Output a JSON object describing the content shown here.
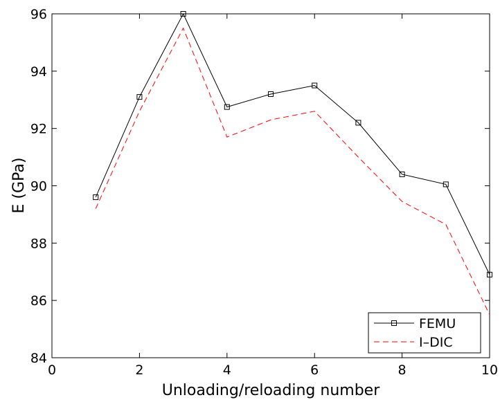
{
  "chart_data": {
    "type": "line",
    "xlabel": "Unloading/reloading number",
    "ylabel": "E (GPa)",
    "xlim": [
      0,
      10
    ],
    "ylim": [
      84,
      96
    ],
    "xticks": [
      0,
      2,
      4,
      6,
      8,
      10
    ],
    "yticks": [
      84,
      86,
      88,
      90,
      92,
      94,
      96
    ],
    "grid": false,
    "legend_position": "bottom-right",
    "series": [
      {
        "name": "FEMU",
        "color": "#000000",
        "style": "solid",
        "marker": "square",
        "x": [
          1,
          2,
          3,
          4,
          5,
          6,
          7,
          8,
          9,
          10
        ],
        "y": [
          89.6,
          93.1,
          96.0,
          92.75,
          93.2,
          93.5,
          92.2,
          90.4,
          90.05,
          86.9
        ]
      },
      {
        "name": "I–DIC",
        "color": "#ff0000",
        "style": "dashed",
        "marker": "none",
        "x": [
          1,
          2,
          3,
          4,
          5,
          6,
          7,
          8,
          9,
          10
        ],
        "y": [
          89.2,
          92.6,
          95.5,
          91.7,
          92.3,
          92.6,
          91.0,
          89.45,
          88.65,
          85.5
        ]
      }
    ]
  }
}
